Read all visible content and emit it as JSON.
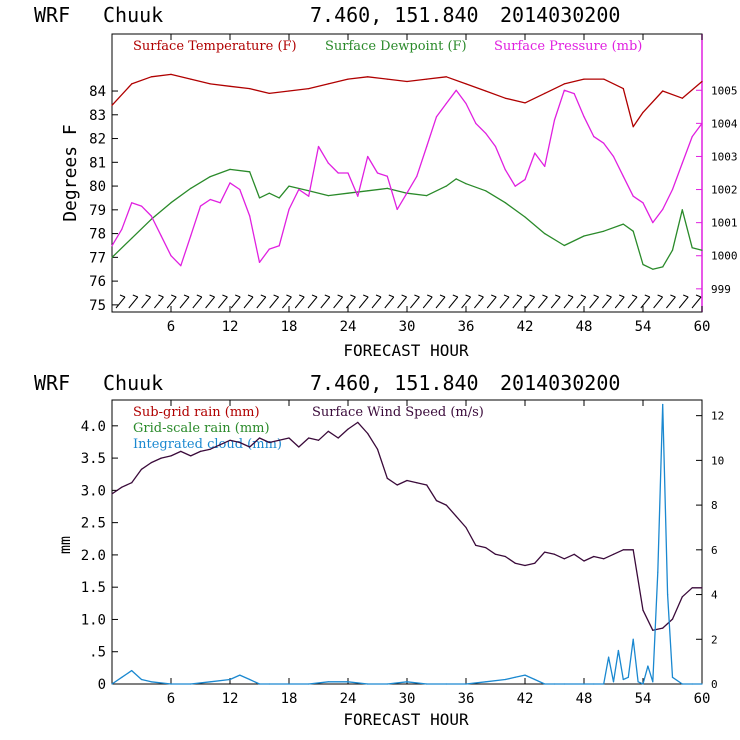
{
  "colors": {
    "temperature": "#b00000",
    "dewpoint": "#2a8a2a",
    "pressure": "#e020e0",
    "wind": "#3a0a3a",
    "cloud": "#1a88d0",
    "axis": "#000000",
    "right_axis": "#e020e0"
  },
  "chart_data": [
    {
      "type": "line",
      "header": {
        "model": "WRF",
        "station": "Chuuk",
        "coords": "7.460, 151.840",
        "date": "2014030200"
      },
      "xlabel": "FORECAST HOUR",
      "ylabel": "Degrees F",
      "xlim": [
        0,
        60
      ],
      "ylim": [
        74.7,
        86.4
      ],
      "y2lim": [
        998.3,
        1006.7
      ],
      "xticks": [
        6,
        12,
        18,
        24,
        30,
        36,
        42,
        48,
        54,
        60
      ],
      "yticks": [
        75,
        76,
        77,
        78,
        79,
        80,
        81,
        82,
        83,
        84
      ],
      "y2ticks": [
        999,
        1000,
        1001,
        1002,
        1003,
        1004,
        1005
      ],
      "legend": [
        "Surface Temperature (F)",
        "Surface Dewpoint (F)",
        "Surface Pressure (mb)"
      ],
      "series": [
        {
          "name": "Surface Temperature (F)",
          "axis": "left",
          "x": [
            0,
            2,
            4,
            6,
            8,
            10,
            12,
            14,
            16,
            18,
            20,
            22,
            24,
            26,
            28,
            30,
            32,
            34,
            36,
            38,
            40,
            42,
            44,
            46,
            48,
            50,
            52,
            53,
            54,
            56,
            58,
            60
          ],
          "values": [
            83.4,
            84.3,
            84.6,
            84.7,
            84.5,
            84.3,
            84.2,
            84.1,
            83.9,
            84.0,
            84.1,
            84.3,
            84.5,
            84.6,
            84.5,
            84.4,
            84.5,
            84.6,
            84.3,
            84.0,
            83.7,
            83.5,
            83.9,
            84.3,
            84.5,
            84.5,
            84.1,
            82.5,
            83.1,
            84.0,
            83.7,
            84.4
          ]
        },
        {
          "name": "Surface Dewpoint (F)",
          "axis": "left",
          "x": [
            0,
            2,
            4,
            6,
            8,
            10,
            12,
            14,
            15,
            16,
            17,
            18,
            20,
            22,
            24,
            26,
            28,
            30,
            32,
            34,
            35,
            36,
            38,
            40,
            42,
            44,
            46,
            48,
            50,
            52,
            53,
            54,
            55,
            56,
            57,
            58,
            59,
            60
          ],
          "values": [
            77.0,
            77.8,
            78.6,
            79.3,
            79.9,
            80.4,
            80.7,
            80.6,
            79.5,
            79.7,
            79.5,
            80.0,
            79.8,
            79.6,
            79.7,
            79.8,
            79.9,
            79.7,
            79.6,
            80.0,
            80.3,
            80.1,
            79.8,
            79.3,
            78.7,
            78.0,
            77.5,
            77.9,
            78.1,
            78.4,
            78.1,
            76.7,
            76.5,
            76.6,
            77.3,
            79.0,
            77.4,
            77.3
          ]
        },
        {
          "name": "Surface Pressure (mb)",
          "axis": "right",
          "x": [
            0,
            1,
            2,
            3,
            4,
            5,
            6,
            7,
            8,
            9,
            10,
            11,
            12,
            13,
            14,
            15,
            16,
            17,
            18,
            19,
            20,
            21,
            22,
            23,
            24,
            25,
            26,
            27,
            28,
            29,
            30,
            31,
            32,
            33,
            34,
            35,
            36,
            37,
            38,
            39,
            40,
            41,
            42,
            43,
            44,
            45,
            46,
            47,
            48,
            49,
            50,
            51,
            52,
            53,
            54,
            55,
            56,
            57,
            58,
            59,
            60
          ],
          "values": [
            1000.3,
            1000.8,
            1001.6,
            1001.5,
            1001.2,
            1000.6,
            1000.0,
            999.7,
            1000.6,
            1001.5,
            1001.7,
            1001.6,
            1002.2,
            1002.0,
            1001.2,
            999.8,
            1000.2,
            1000.3,
            1001.4,
            1002.0,
            1001.8,
            1003.3,
            1002.8,
            1002.5,
            1002.5,
            1001.8,
            1003.0,
            1002.5,
            1002.4,
            1001.4,
            1001.9,
            1002.4,
            1003.3,
            1004.2,
            1004.6,
            1005.0,
            1004.6,
            1004.0,
            1003.7,
            1003.3,
            1002.6,
            1002.1,
            1002.3,
            1003.1,
            1002.7,
            1004.1,
            1005.0,
            1004.9,
            1004.2,
            1003.6,
            1003.4,
            1003.0,
            1002.4,
            1001.8,
            1001.6,
            1001.0,
            1001.4,
            1002.0,
            1002.8,
            1003.6,
            1004.0
          ]
        }
      ]
    },
    {
      "type": "line",
      "header": {
        "model": "WRF",
        "station": "Chuuk",
        "coords": "7.460, 151.840",
        "date": "2014030200"
      },
      "xlabel": "FORECAST HOUR",
      "ylabel": "mm",
      "xlim": [
        0,
        60
      ],
      "ylim": [
        0,
        4.4
      ],
      "y2lim": [
        0,
        12.7
      ],
      "xticks": [
        6,
        12,
        18,
        24,
        30,
        36,
        42,
        48,
        54,
        60
      ],
      "yticks": [
        0,
        0.5,
        1.0,
        1.5,
        2.0,
        2.5,
        3.0,
        3.5,
        4.0
      ],
      "ytick_labels": [
        "0",
        ".5",
        "1.0",
        "1.5",
        "2.0",
        "2.5",
        "3.0",
        "3.5",
        "4.0"
      ],
      "y2ticks": [
        0,
        2,
        4,
        6,
        8,
        10,
        12
      ],
      "legend": [
        "Sub-grid rain (mm)",
        "Grid-scale rain (mm)",
        "Integrated cloud (mm)",
        "Surface Wind Speed (m/s)"
      ],
      "series": [
        {
          "name": "Surface Wind Speed (m/s)",
          "axis": "right",
          "x": [
            0,
            1,
            2,
            3,
            4,
            5,
            6,
            7,
            8,
            9,
            10,
            11,
            12,
            13,
            14,
            15,
            16,
            17,
            18,
            19,
            20,
            21,
            22,
            23,
            24,
            25,
            26,
            27,
            28,
            29,
            30,
            31,
            32,
            33,
            34,
            35,
            36,
            37,
            38,
            39,
            40,
            41,
            42,
            43,
            44,
            45,
            46,
            47,
            48,
            49,
            50,
            51,
            52,
            53,
            54,
            55,
            56,
            57,
            58,
            59,
            60
          ],
          "values": [
            8.5,
            8.8,
            9.0,
            9.6,
            9.9,
            10.1,
            10.2,
            10.4,
            10.2,
            10.4,
            10.5,
            10.7,
            10.9,
            10.8,
            10.6,
            11.0,
            10.8,
            10.9,
            11.0,
            10.6,
            11.0,
            10.9,
            11.3,
            11.0,
            11.4,
            11.7,
            11.2,
            10.5,
            9.2,
            8.9,
            9.1,
            9.0,
            8.9,
            8.2,
            8.0,
            7.5,
            7.0,
            6.2,
            6.1,
            5.8,
            5.7,
            5.4,
            5.3,
            5.4,
            5.9,
            5.8,
            5.6,
            5.8,
            5.5,
            5.7,
            5.6,
            5.8,
            6.0,
            6.0,
            3.3,
            2.4,
            2.5,
            2.9,
            3.9,
            4.3,
            4.3
          ]
        },
        {
          "name": "Integrated cloud (mm)",
          "axis": "right",
          "x": [
            0,
            1,
            2,
            3,
            4,
            6,
            8,
            10,
            12,
            13,
            14,
            15,
            16,
            20,
            22,
            24,
            26,
            28,
            30,
            32,
            34,
            36,
            38,
            40,
            41,
            42,
            43,
            44,
            45,
            46,
            48,
            49,
            50,
            50.5,
            51,
            51.5,
            52,
            52.5,
            53,
            53.5,
            54,
            54.5,
            55,
            55.5,
            56,
            56.5,
            57,
            58,
            59,
            60
          ],
          "values": [
            0.0,
            0.3,
            0.6,
            0.2,
            0.1,
            0.0,
            0.0,
            0.1,
            0.2,
            0.4,
            0.2,
            0.0,
            0.0,
            0.0,
            0.1,
            0.1,
            0.0,
            0.0,
            0.1,
            0.0,
            0.0,
            0.0,
            0.1,
            0.2,
            0.3,
            0.4,
            0.2,
            0.0,
            0.0,
            0.0,
            0.0,
            0.0,
            0.0,
            1.2,
            0.1,
            1.5,
            0.2,
            0.3,
            2.0,
            0.1,
            0.0,
            0.8,
            0.1,
            5.0,
            12.5,
            4.0,
            0.3,
            0.0,
            0.0,
            0.0
          ]
        }
      ]
    }
  ]
}
